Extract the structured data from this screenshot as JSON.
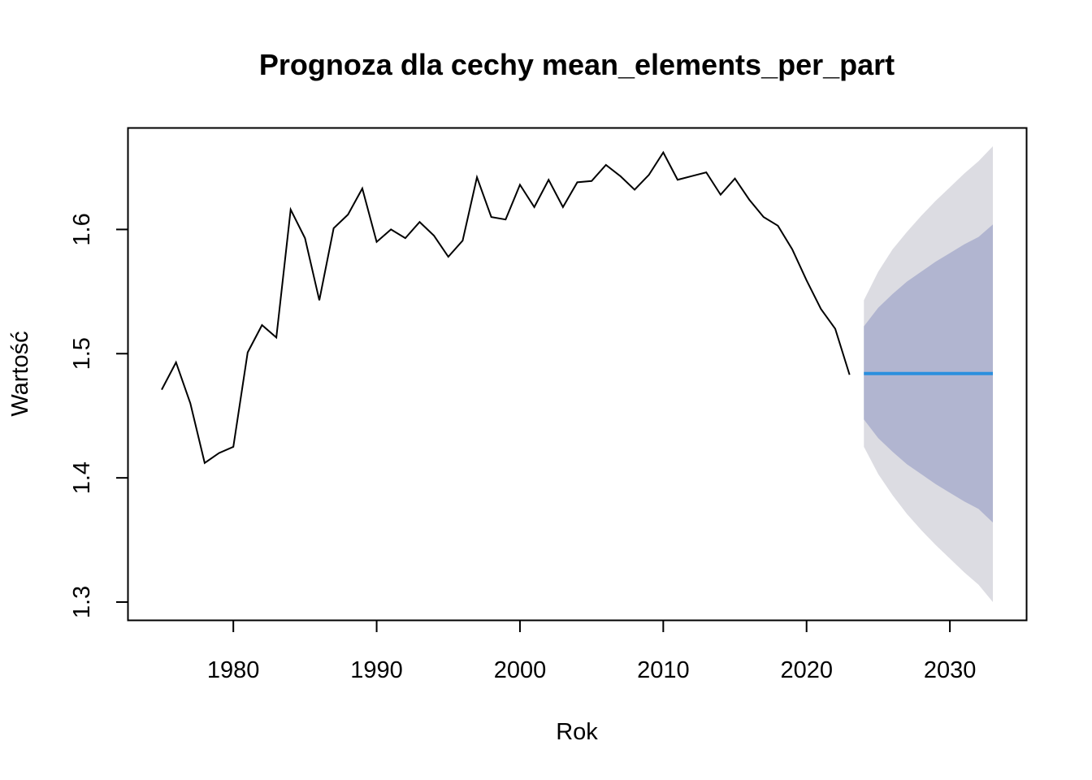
{
  "chart_data": {
    "type": "line",
    "title": "Prognoza dla cechy mean_elements_per_part",
    "xlabel": "Rok",
    "ylabel": "Wartość",
    "xlim": [
      1975,
      2033
    ],
    "ylim": [
      1.3,
      1.667
    ],
    "x_ticks": [
      1980,
      1990,
      2000,
      2010,
      2020,
      2030
    ],
    "y_ticks": [
      1.3,
      1.4,
      1.5,
      1.6
    ],
    "grid": false,
    "legend": "none",
    "colors": {
      "history": "#000000",
      "forecast": "#2b8fde",
      "band_80": "#b1b5d0",
      "band_95": "#dcdce2"
    },
    "history": {
      "x": [
        1975,
        1976,
        1977,
        1978,
        1979,
        1980,
        1981,
        1982,
        1983,
        1984,
        1985,
        1986,
        1987,
        1988,
        1989,
        1990,
        1991,
        1992,
        1993,
        1994,
        1995,
        1996,
        1997,
        1998,
        1999,
        2000,
        2001,
        2002,
        2003,
        2004,
        2005,
        2006,
        2007,
        2008,
        2009,
        2010,
        2011,
        2012,
        2013,
        2014,
        2015,
        2016,
        2017,
        2018,
        2019,
        2020,
        2021,
        2022,
        2023
      ],
      "values": [
        1.471,
        1.493,
        1.46,
        1.412,
        1.42,
        1.425,
        1.501,
        1.523,
        1.513,
        1.616,
        1.593,
        1.543,
        1.601,
        1.612,
        1.633,
        1.59,
        1.6,
        1.593,
        1.606,
        1.595,
        1.578,
        1.591,
        1.642,
        1.61,
        1.608,
        1.636,
        1.618,
        1.64,
        1.618,
        1.638,
        1.639,
        1.652,
        1.643,
        1.632,
        1.644,
        1.662,
        1.64,
        1.643,
        1.646,
        1.628,
        1.641,
        1.624,
        1.61,
        1.603,
        1.584,
        1.559,
        1.536,
        1.52,
        1.483
      ]
    },
    "forecast": {
      "x": [
        2024,
        2025,
        2026,
        2027,
        2028,
        2029,
        2030,
        2031,
        2032,
        2033
      ],
      "mean": [
        1.484,
        1.484,
        1.484,
        1.484,
        1.484,
        1.484,
        1.484,
        1.484,
        1.484,
        1.484
      ],
      "lo80": [
        1.447,
        1.432,
        1.421,
        1.411,
        1.403,
        1.395,
        1.388,
        1.381,
        1.375,
        1.364
      ],
      "hi80": [
        1.522,
        1.537,
        1.548,
        1.558,
        1.566,
        1.574,
        1.581,
        1.588,
        1.594,
        1.604
      ],
      "lo95": [
        1.425,
        1.403,
        1.386,
        1.371,
        1.358,
        1.346,
        1.335,
        1.324,
        1.314,
        1.3
      ],
      "hi95": [
        1.543,
        1.566,
        1.584,
        1.598,
        1.611,
        1.623,
        1.634,
        1.645,
        1.655,
        1.667
      ]
    }
  }
}
